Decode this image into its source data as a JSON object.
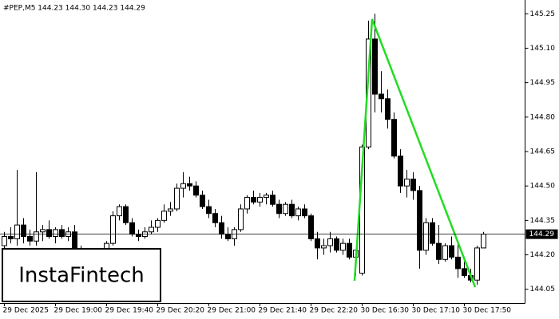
{
  "chart_data": {
    "type": "candlestick",
    "subtitle": "#PEP,M5  144.23 144.30 144.23 144.29",
    "watermark": "InstaFintech",
    "categories": [
      "29 Dec 2025",
      null,
      null,
      null,
      null,
      null,
      null,
      null,
      "29 Dec 19:00",
      null,
      null,
      null,
      null,
      null,
      null,
      null,
      "29 Dec 19:40",
      null,
      null,
      null,
      null,
      null,
      null,
      null,
      "29 Dec 20:20",
      null,
      null,
      null,
      null,
      null,
      null,
      null,
      "29 Dec 21:00",
      null,
      null,
      null,
      null,
      null,
      null,
      null,
      "29 Dec 21:40",
      null,
      null,
      null,
      null,
      null,
      null,
      null,
      "29 Dec 22:20",
      null,
      null,
      null,
      null,
      null,
      null,
      null,
      "30 Dec 16:30",
      null,
      null,
      null,
      null,
      null,
      null,
      null,
      "30 Dec 17:10",
      null,
      null,
      null,
      null,
      null,
      null,
      null,
      "30 Dec 17:50",
      null,
      null,
      null
    ],
    "open": [
      144.24,
      144.28,
      144.27,
      144.33,
      144.28,
      144.26,
      144.3,
      144.31,
      144.28,
      144.31,
      144.28,
      144.3,
      144.2,
      144.18,
      144.14,
      144.13,
      144.16,
      144.25,
      144.37,
      144.41,
      144.34,
      144.29,
      144.28,
      144.3,
      144.32,
      144.35,
      144.39,
      144.4,
      144.49,
      144.51,
      144.5,
      144.46,
      144.41,
      144.38,
      144.34,
      144.29,
      144.27,
      144.31,
      144.4,
      144.45,
      144.43,
      144.45,
      144.46,
      144.42,
      144.38,
      144.42,
      144.37,
      144.4,
      144.37,
      144.27,
      144.23,
      144.24,
      144.27,
      144.22,
      144.25,
      144.19,
      144.12,
      144.67,
      145.14,
      144.9,
      144.88,
      144.79,
      144.63,
      144.5,
      144.53,
      144.48,
      144.22,
      144.34,
      144.25,
      144.18,
      144.24,
      144.19,
      144.14,
      144.11,
      144.09,
      144.23
    ],
    "high": [
      144.3,
      144.32,
      144.57,
      144.36,
      144.31,
      144.56,
      144.33,
      144.35,
      144.32,
      144.33,
      144.32,
      144.33,
      144.24,
      144.22,
      144.18,
      144.2,
      144.26,
      144.39,
      144.42,
      144.42,
      144.36,
      144.31,
      144.32,
      144.35,
      144.36,
      144.42,
      144.43,
      144.51,
      144.56,
      144.54,
      144.52,
      144.48,
      144.44,
      144.4,
      144.37,
      144.32,
      144.32,
      144.42,
      144.46,
      144.48,
      144.47,
      144.47,
      144.48,
      144.44,
      144.43,
      144.44,
      144.41,
      144.42,
      144.38,
      144.3,
      144.27,
      144.3,
      144.28,
      144.27,
      144.27,
      144.22,
      144.68,
      145.22,
      145.25,
      145.0,
      144.92,
      144.82,
      144.66,
      144.57,
      144.56,
      144.5,
      144.36,
      144.36,
      144.33,
      144.25,
      144.28,
      144.26,
      144.17,
      144.14,
      144.24,
      144.3
    ],
    "low": [
      144.2,
      144.25,
      144.24,
      144.25,
      144.24,
      144.24,
      144.26,
      144.27,
      144.25,
      144.27,
      144.26,
      144.19,
      144.15,
      144.12,
      144.11,
      144.12,
      144.15,
      144.24,
      144.35,
      144.33,
      144.28,
      144.26,
      144.27,
      144.29,
      144.3,
      144.34,
      144.37,
      144.39,
      144.45,
      144.48,
      144.45,
      144.4,
      144.36,
      144.32,
      144.27,
      144.26,
      144.24,
      144.3,
      144.38,
      144.42,
      144.41,
      144.42,
      144.41,
      144.36,
      144.37,
      144.36,
      144.35,
      144.36,
      144.26,
      144.18,
      144.2,
      144.21,
      144.21,
      144.2,
      144.18,
      144.11,
      144.11,
      144.66,
      144.82,
      144.82,
      144.75,
      144.62,
      144.47,
      144.45,
      144.44,
      144.14,
      144.2,
      144.24,
      144.16,
      144.17,
      144.18,
      144.1,
      144.1,
      144.08,
      144.07,
      144.23
    ],
    "close": [
      144.28,
      144.27,
      144.33,
      144.28,
      144.26,
      144.3,
      144.31,
      144.28,
      144.31,
      144.28,
      144.3,
      144.2,
      144.18,
      144.14,
      144.13,
      144.16,
      144.25,
      144.37,
      144.41,
      144.34,
      144.29,
      144.28,
      144.3,
      144.32,
      144.35,
      144.39,
      144.4,
      144.49,
      144.51,
      144.5,
      144.46,
      144.41,
      144.38,
      144.34,
      144.29,
      144.27,
      144.31,
      144.4,
      144.45,
      144.43,
      144.45,
      144.46,
      144.42,
      144.38,
      144.42,
      144.37,
      144.4,
      144.37,
      144.27,
      144.23,
      144.24,
      144.27,
      144.22,
      144.25,
      144.19,
      144.22,
      144.67,
      145.14,
      144.9,
      144.88,
      144.79,
      144.63,
      144.5,
      144.53,
      144.48,
      144.22,
      144.34,
      144.25,
      144.18,
      144.24,
      144.19,
      144.14,
      144.11,
      144.09,
      144.23,
      144.29
    ],
    "up_color": "#ffffff",
    "down_color": "#000000",
    "last_price": 144.29,
    "ylim": [
      143.99,
      145.31
    ],
    "yticks": [
      145.25,
      {
        "value": 145.1,
        "label": "145.10"
      },
      144.95,
      {
        "value": 144.8,
        "label": "144.80"
      },
      144.65,
      {
        "value": 144.5,
        "label": "144.50"
      },
      144.35,
      {
        "value": 144.2,
        "label": "144.20"
      },
      144.05
    ],
    "grid": false
  }
}
